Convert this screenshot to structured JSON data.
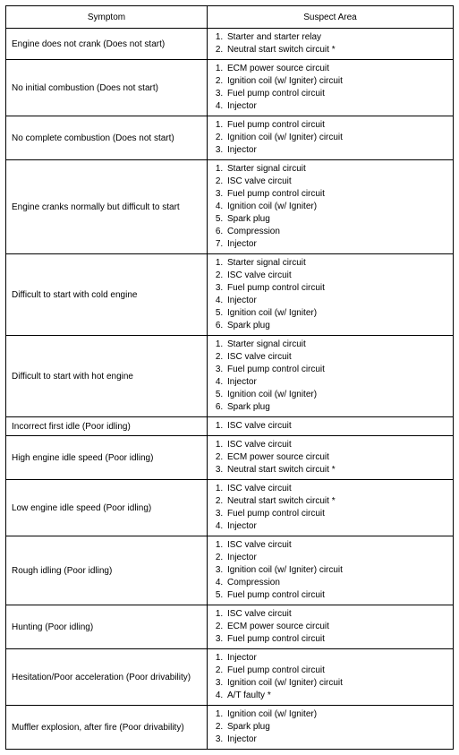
{
  "table": {
    "columns": [
      "Symptom",
      "Suspect Area"
    ],
    "column_widths_pct": [
      45,
      55
    ],
    "border_color": "#000000",
    "background_color": "#ffffff",
    "text_color": "#000000",
    "font_size_pt": 8,
    "rows": [
      {
        "symptom": "Engine does not crank (Does not start)",
        "suspects": [
          "Starter and starter relay",
          "Neutral start switch circuit *"
        ]
      },
      {
        "symptom": "No initial combustion (Does not start)",
        "suspects": [
          "ECM power source circuit",
          "Ignition coil (w/ Igniter) circuit",
          "Fuel pump control circuit",
          "Injector"
        ]
      },
      {
        "symptom": "No complete combustion (Does not start)",
        "suspects": [
          "Fuel pump control circuit",
          "Ignition coil (w/ Igniter) circuit",
          "Injector"
        ]
      },
      {
        "symptom": "Engine cranks normally but difficult to start",
        "suspects": [
          "Starter signal circuit",
          "ISC valve circuit",
          "Fuel pump control circuit",
          "Ignition coil (w/ Igniter)",
          "Spark plug",
          "Compression",
          "Injector"
        ]
      },
      {
        "symptom": "Difficult to start with cold engine",
        "suspects": [
          "Starter signal circuit",
          "ISC valve circuit",
          "Fuel pump control circuit",
          "Injector",
          "Ignition coil (w/ Igniter)",
          "Spark plug"
        ]
      },
      {
        "symptom": "Difficult to start with hot engine",
        "suspects": [
          "Starter signal circuit",
          "ISC valve circuit",
          "Fuel pump control circuit",
          "Injector",
          "Ignition coil (w/ Igniter)",
          "Spark plug"
        ]
      },
      {
        "symptom": "Incorrect first idle (Poor idling)",
        "suspects": [
          "ISC valve circuit"
        ]
      },
      {
        "symptom": "High engine idle speed (Poor idling)",
        "suspects": [
          "ISC valve circuit",
          "ECM power source circuit",
          "Neutral start switch circuit *"
        ]
      },
      {
        "symptom": "Low engine idle speed (Poor idling)",
        "suspects": [
          "ISC valve circuit",
          "Neutral start switch circuit   *",
          "Fuel pump control circuit",
          "Injector"
        ]
      },
      {
        "symptom": "Rough idling (Poor idling)",
        "suspects": [
          "ISC valve circuit",
          "Injector",
          "Ignition coil (w/ Igniter) circuit",
          "Compression",
          "Fuel pump control circuit"
        ]
      },
      {
        "symptom": "Hunting (Poor idling)",
        "suspects": [
          "ISC valve circuit",
          "ECM power source circuit",
          "Fuel pump control circuit"
        ]
      },
      {
        "symptom": "Hesitation/Poor acceleration (Poor drivability)",
        "suspects": [
          "Injector",
          "Fuel pump control circuit",
          "Ignition coil (w/ Igniter) circuit",
          "A/T faulty *"
        ]
      },
      {
        "symptom": "Muffler explosion, after fire (Poor drivability)",
        "suspects": [
          "Ignition coil (w/ Igniter)",
          "Spark plug",
          "Injector"
        ]
      }
    ]
  }
}
